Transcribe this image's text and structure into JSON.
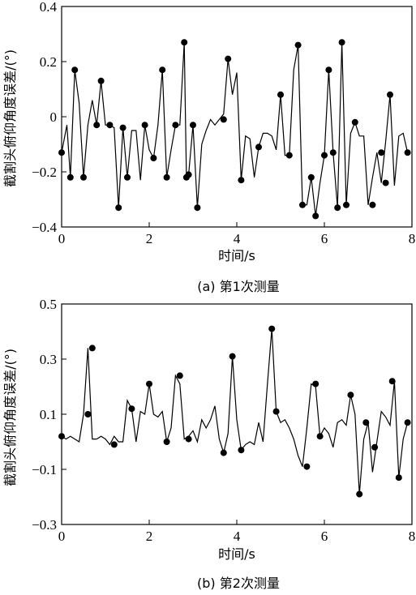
{
  "chart_data": [
    {
      "type": "line",
      "caption": "(a)  第1次测量",
      "xlabel": "时间/s",
      "ylabel": "截割头俯仰角度误差/(°)",
      "xlim": [
        0,
        8
      ],
      "ylim": [
        -0.4,
        0.4
      ],
      "xticks": [
        "0",
        "2",
        "4",
        "6",
        "8"
      ],
      "yticks": [
        "0.4",
        "0.2",
        "0",
        "−0.2",
        "−0.4"
      ],
      "ytick_values": [
        0.4,
        0.2,
        0,
        -0.2,
        -0.4
      ],
      "xtick_values": [
        0,
        2,
        4,
        6,
        8
      ],
      "line_x": [
        0.0,
        0.12,
        0.2,
        0.3,
        0.4,
        0.5,
        0.6,
        0.7,
        0.8,
        0.9,
        1.0,
        1.1,
        1.2,
        1.3,
        1.4,
        1.5,
        1.6,
        1.7,
        1.8,
        1.9,
        2.0,
        2.1,
        2.2,
        2.3,
        2.4,
        2.5,
        2.6,
        2.7,
        2.8,
        2.85,
        2.9,
        3.0,
        3.1,
        3.2,
        3.3,
        3.4,
        3.5,
        3.6,
        3.7,
        3.8,
        3.9,
        4.0,
        4.1,
        4.2,
        4.3,
        4.4,
        4.5,
        4.6,
        4.7,
        4.8,
        4.9,
        5.0,
        5.1,
        5.2,
        5.3,
        5.4,
        5.5,
        5.6,
        5.7,
        5.8,
        5.9,
        6.0,
        6.1,
        6.2,
        6.3,
        6.4,
        6.5,
        6.6,
        6.7,
        6.8,
        6.9,
        7.0,
        7.1,
        7.2,
        7.3,
        7.4,
        7.5,
        7.6,
        7.7,
        7.8,
        7.9
      ],
      "line_y": [
        -0.13,
        -0.03,
        -0.22,
        0.17,
        0.05,
        -0.22,
        -0.03,
        0.06,
        -0.03,
        0.13,
        -0.03,
        -0.03,
        -0.04,
        -0.33,
        -0.04,
        -0.22,
        -0.05,
        -0.05,
        -0.23,
        -0.03,
        -0.12,
        -0.15,
        -0.03,
        0.17,
        -0.22,
        -0.12,
        -0.03,
        -0.03,
        0.27,
        -0.22,
        -0.21,
        -0.03,
        -0.33,
        -0.1,
        -0.05,
        -0.01,
        -0.03,
        -0.01,
        0.01,
        0.21,
        0.08,
        0.16,
        -0.23,
        -0.07,
        -0.08,
        -0.22,
        -0.11,
        -0.06,
        -0.06,
        -0.07,
        -0.12,
        0.08,
        -0.14,
        -0.14,
        0.17,
        0.26,
        -0.32,
        -0.32,
        -0.22,
        -0.36,
        -0.24,
        -0.14,
        0.17,
        -0.13,
        -0.33,
        0.27,
        -0.32,
        -0.06,
        -0.02,
        -0.07,
        -0.07,
        -0.32,
        -0.22,
        -0.13,
        -0.24,
        -0.09,
        0.08,
        -0.25,
        -0.07,
        -0.06,
        -0.13
      ],
      "markers_x": [
        0.0,
        0.2,
        0.3,
        0.5,
        0.8,
        0.9,
        1.1,
        1.3,
        1.4,
        1.5,
        1.9,
        2.1,
        2.3,
        2.4,
        2.6,
        2.8,
        2.85,
        2.9,
        3.0,
        3.1,
        3.7,
        3.8,
        4.1,
        4.5,
        5.0,
        5.2,
        5.4,
        5.5,
        5.7,
        5.8,
        6.0,
        6.1,
        6.2,
        6.3,
        6.4,
        6.5,
        6.7,
        7.1,
        7.3,
        7.4,
        7.5,
        7.9
      ],
      "markers_y": [
        -0.13,
        -0.22,
        0.17,
        -0.22,
        -0.03,
        0.13,
        -0.03,
        -0.33,
        -0.04,
        -0.22,
        -0.03,
        -0.15,
        0.17,
        -0.22,
        -0.03,
        0.27,
        -0.22,
        -0.21,
        -0.03,
        -0.33,
        -0.01,
        0.21,
        -0.23,
        -0.11,
        0.08,
        -0.14,
        0.26,
        -0.32,
        -0.22,
        -0.36,
        -0.14,
        0.17,
        -0.13,
        -0.33,
        0.27,
        -0.32,
        -0.02,
        -0.32,
        -0.13,
        -0.24,
        0.08,
        -0.13
      ],
      "grid": false
    },
    {
      "type": "line",
      "caption": "(b)  第2次测量",
      "xlabel": "时间/s",
      "ylabel": "截割头俯仰角度误差/(°)",
      "xlim": [
        0,
        8
      ],
      "ylim": [
        -0.3,
        0.5
      ],
      "xticks": [
        "0",
        "2",
        "4",
        "6",
        "8"
      ],
      "yticks": [
        "0.5",
        "0.3",
        "0.1",
        "−0.1",
        "−0.3"
      ],
      "ytick_values": [
        0.5,
        0.3,
        0.1,
        -0.1,
        -0.3
      ],
      "xtick_values": [
        0,
        2,
        4,
        6,
        8
      ],
      "line_x": [
        0.0,
        0.1,
        0.2,
        0.3,
        0.4,
        0.5,
        0.6,
        0.7,
        0.8,
        0.9,
        1.0,
        1.1,
        1.2,
        1.3,
        1.4,
        1.5,
        1.6,
        1.7,
        1.8,
        1.9,
        2.0,
        2.1,
        2.2,
        2.3,
        2.4,
        2.5,
        2.6,
        2.7,
        2.8,
        2.9,
        3.0,
        3.1,
        3.2,
        3.3,
        3.4,
        3.5,
        3.6,
        3.7,
        3.8,
        3.9,
        4.0,
        4.1,
        4.2,
        4.3,
        4.4,
        4.5,
        4.6,
        4.7,
        4.8,
        4.9,
        5.0,
        5.1,
        5.2,
        5.3,
        5.4,
        5.5,
        5.6,
        5.7,
        5.8,
        5.9,
        6.0,
        6.1,
        6.2,
        6.3,
        6.4,
        6.5,
        6.6,
        6.7,
        6.8,
        6.9,
        7.0,
        7.1,
        7.2,
        7.3,
        7.4,
        7.5,
        7.6,
        7.7,
        7.8,
        7.9
      ],
      "line_y": [
        0.02,
        0.01,
        0.02,
        0.01,
        0.0,
        0.1,
        0.34,
        0.01,
        0.01,
        0.02,
        0.01,
        -0.01,
        0.02,
        0.0,
        0.0,
        0.15,
        0.12,
        0.0,
        0.11,
        0.1,
        0.21,
        0.1,
        0.09,
        0.11,
        0.0,
        0.05,
        0.24,
        0.21,
        0.01,
        0.02,
        0.04,
        0.0,
        0.08,
        0.05,
        0.08,
        0.13,
        0.01,
        -0.04,
        0.03,
        0.31,
        0.08,
        -0.03,
        -0.01,
        0.0,
        -0.01,
        0.07,
        0.0,
        0.21,
        0.41,
        0.11,
        0.07,
        0.08,
        0.05,
        0.01,
        -0.05,
        -0.09,
        0.05,
        0.21,
        0.2,
        0.02,
        0.05,
        0.03,
        -0.02,
        0.07,
        0.08,
        0.06,
        0.17,
        0.1,
        -0.19,
        0.01,
        0.07,
        -0.11,
        0.0,
        0.11,
        0.09,
        0.06,
        0.22,
        -0.13,
        0.01,
        0.07
      ],
      "markers_x": [
        0.0,
        0.6,
        0.7,
        1.2,
        1.6,
        2.0,
        2.4,
        2.7,
        2.9,
        3.7,
        3.9,
        4.1,
        4.8,
        4.9,
        5.6,
        5.8,
        5.9,
        6.6,
        6.8,
        6.95,
        7.15,
        7.55,
        7.7,
        7.9
      ],
      "markers_y": [
        0.02,
        0.1,
        0.34,
        -0.01,
        0.12,
        0.21,
        0.0,
        0.24,
        0.01,
        -0.04,
        0.31,
        -0.03,
        0.41,
        0.11,
        -0.09,
        0.21,
        0.02,
        0.17,
        -0.19,
        0.07,
        -0.02,
        0.22,
        -0.13,
        0.07
      ],
      "grid": false
    }
  ]
}
